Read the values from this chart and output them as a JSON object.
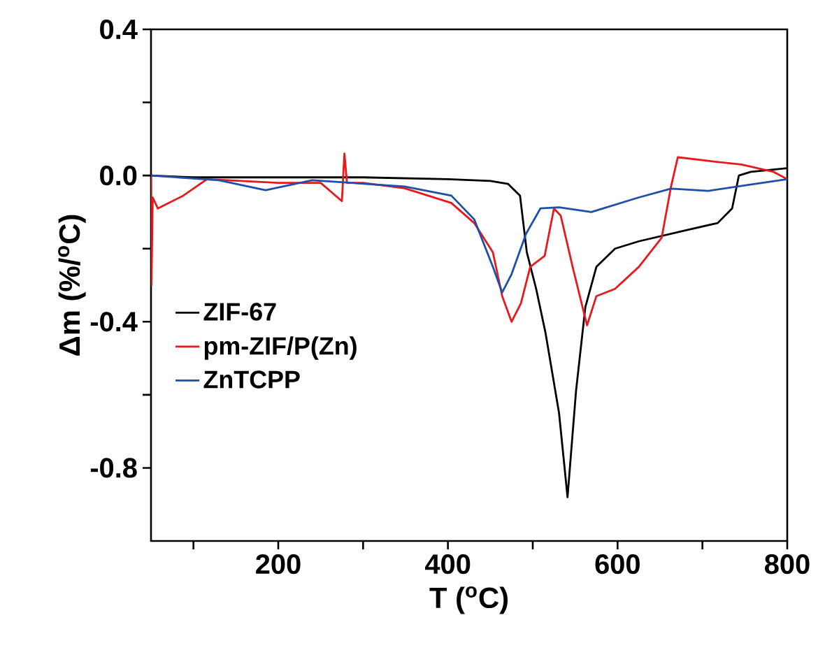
{
  "chart_data": {
    "type": "line",
    "xlabel": "T ($^{o}$C)",
    "ylabel": "Δm (%/$^{o}$C)",
    "xlim": [
      50,
      800
    ],
    "ylim": [
      -1.0,
      0.4
    ],
    "xticks": [
      {
        "value": 100,
        "label": null
      },
      200,
      {
        "value": 300,
        "label": null
      },
      400,
      {
        "value": 500,
        "label": null
      },
      600,
      {
        "value": 700,
        "label": null
      },
      800
    ],
    "yticks": [
      {
        "value": -0.6,
        "label": null
      },
      -0.8,
      -0.4,
      {
        "value": -0.2,
        "label": null
      },
      {
        "value": 0,
        "label": "0.0"
      },
      {
        "value": 0.2,
        "label": null
      },
      0.4
    ],
    "legend": "left",
    "grid": false,
    "marker": "none",
    "line_style": "solid",
    "series": [
      {
        "name": "ZIF-67",
        "color": "#000000",
        "x": [
          50,
          100,
          200,
          300,
          400,
          450,
          471,
          485,
          493,
          504,
          515,
          531,
          541,
          551,
          562,
          575,
          597,
          625,
          680,
          718,
          735,
          743,
          757,
          800
        ],
        "values": [
          0.0,
          -0.005,
          -0.005,
          -0.005,
          -0.01,
          -0.015,
          -0.023,
          -0.055,
          -0.21,
          -0.31,
          -0.43,
          -0.65,
          -0.88,
          -0.59,
          -0.36,
          -0.25,
          -0.2,
          -0.18,
          -0.15,
          -0.13,
          -0.09,
          0.0,
          0.01,
          0.02
        ]
      },
      {
        "name": "pm-ZIF/P(Zn)",
        "color": "#e8191c",
        "x": [
          50,
          50.5,
          52,
          58,
          88,
          116,
          200,
          250,
          275,
          278,
          281,
          300,
          349,
          404,
          431,
          453,
          464,
          475,
          486,
          497,
          514,
          525,
          533,
          547,
          564,
          575,
          597,
          625,
          652,
          663,
          671,
          707,
          746,
          784,
          800
        ],
        "values": [
          0.0,
          -0.3,
          -0.06,
          -0.09,
          -0.055,
          -0.01,
          -0.02,
          -0.02,
          -0.07,
          0.06,
          -0.02,
          -0.02,
          -0.035,
          -0.075,
          -0.13,
          -0.21,
          -0.33,
          -0.4,
          -0.35,
          -0.25,
          -0.22,
          -0.09,
          -0.11,
          -0.25,
          -0.41,
          -0.33,
          -0.31,
          -0.25,
          -0.17,
          -0.03,
          0.05,
          0.04,
          0.03,
          0.01,
          -0.01
        ]
      },
      {
        "name": "ZnTCPP",
        "color": "#1f4fa8",
        "x": [
          50,
          130,
          185,
          240,
          349,
          404,
          431,
          453,
          464,
          475,
          492,
          509,
          531,
          569,
          625,
          663,
          707,
          762,
          800
        ],
        "values": [
          0.0,
          -0.013,
          -0.04,
          -0.013,
          -0.03,
          -0.055,
          -0.12,
          -0.25,
          -0.32,
          -0.27,
          -0.16,
          -0.09,
          -0.087,
          -0.1,
          -0.06,
          -0.036,
          -0.042,
          -0.023,
          -0.01
        ]
      }
    ]
  }
}
